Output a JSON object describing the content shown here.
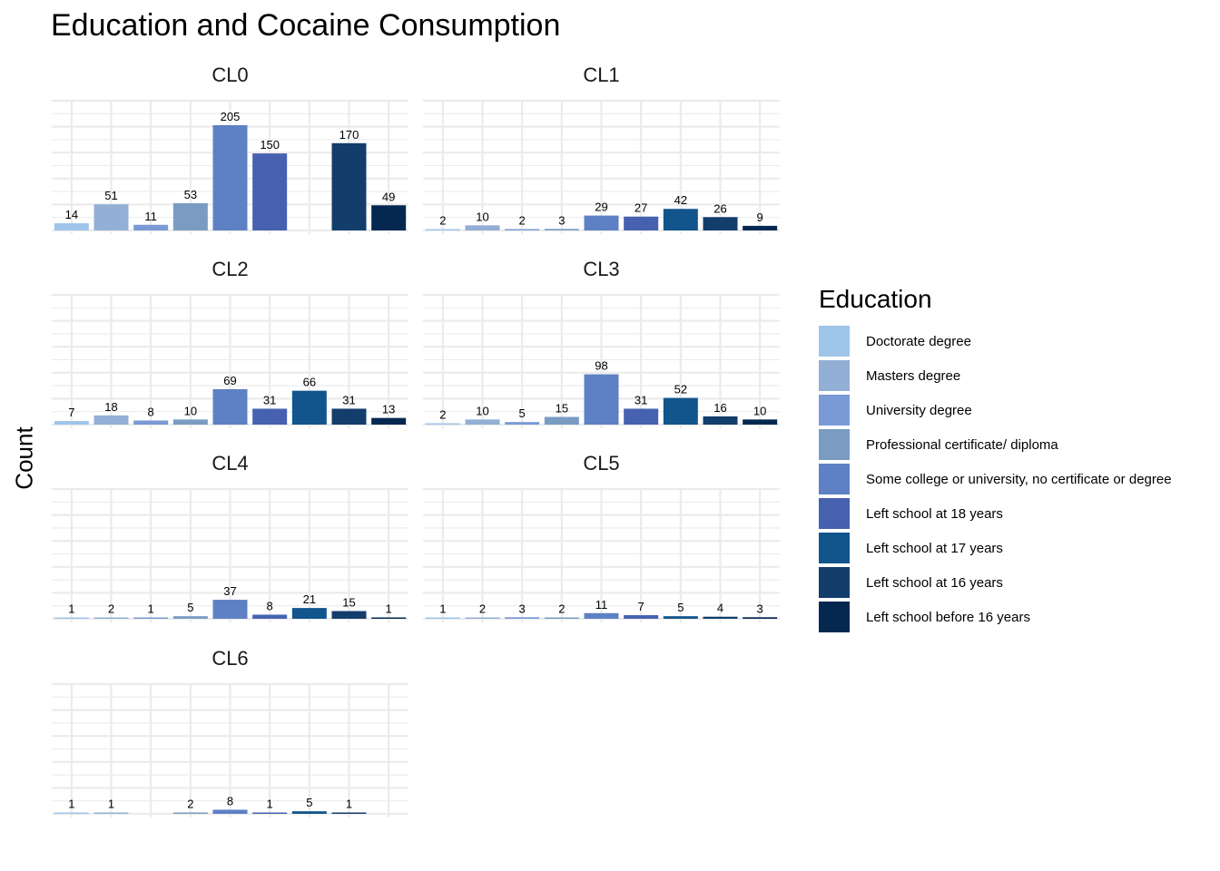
{
  "title": "Education and Cocaine Consumption",
  "ylabel": "Count",
  "legend": {
    "title": "Education",
    "items": [
      {
        "label": "Doctorate degree",
        "color": "#9fc4ea"
      },
      {
        "label": "Masters degree",
        "color": "#94afd5"
      },
      {
        "label": "University degree",
        "color": "#7a9ad6"
      },
      {
        "label": "Professional certificate/ diploma",
        "color": "#7a9cc2"
      },
      {
        "label": "Some college or university, no certificate or degree",
        "color": "#5e80c4"
      },
      {
        "label": "Left school at 18 years",
        "color": "#4661b0"
      },
      {
        "label": "Left school at 17 years",
        "color": "#12558c"
      },
      {
        "label": "Left school at 16 years",
        "color": "#133d6b"
      },
      {
        "label": "Left school before 16 years",
        "color": "#052850"
      }
    ]
  },
  "chart_data": {
    "type": "bar",
    "title": "Education and Cocaine Consumption",
    "xlabel": "",
    "ylabel": "Count",
    "ylim": [
      0,
      205
    ],
    "grid": true,
    "legend_position": "right",
    "categories": [
      "Doctorate degree",
      "Masters degree",
      "University degree",
      "Professional certificate/ diploma",
      "Some college or university, no certificate or degree",
      "Left school at 18 years",
      "Left school at 17 years",
      "Left school at 16 years",
      "Left school before 16 years"
    ],
    "facets": [
      {
        "name": "CL0",
        "values": [
          14,
          51,
          11,
          53,
          205,
          150,
          null,
          170,
          49
        ]
      },
      {
        "name": "CL1",
        "values": [
          2,
          10,
          2,
          3,
          29,
          27,
          42,
          26,
          9
        ]
      },
      {
        "name": "CL2",
        "values": [
          7,
          18,
          8,
          10,
          69,
          31,
          66,
          31,
          13
        ]
      },
      {
        "name": "CL3",
        "values": [
          2,
          10,
          5,
          15,
          98,
          31,
          52,
          16,
          10
        ]
      },
      {
        "name": "CL4",
        "values": [
          1,
          2,
          1,
          5,
          37,
          8,
          21,
          15,
          1
        ]
      },
      {
        "name": "CL5",
        "values": [
          1,
          2,
          3,
          2,
          11,
          7,
          5,
          4,
          3
        ]
      },
      {
        "name": "CL6",
        "values": [
          1,
          1,
          null,
          2,
          8,
          1,
          5,
          1,
          null
        ]
      }
    ]
  }
}
